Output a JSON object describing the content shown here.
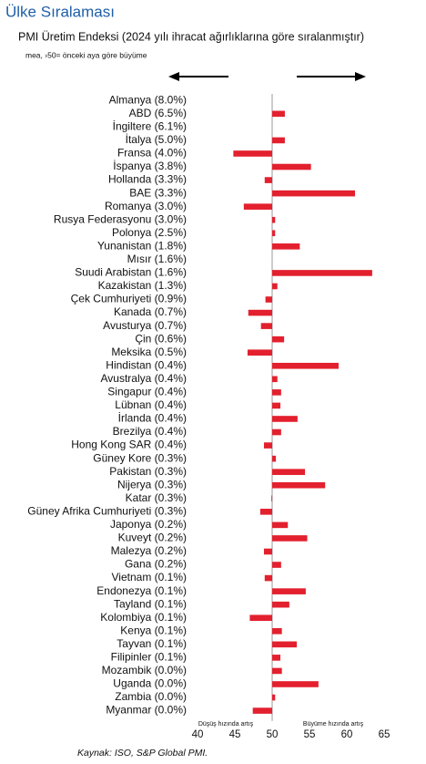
{
  "chart_data": {
    "type": "hbar",
    "title": "Ülke Sıralaması",
    "subtitle": "PMI Üretim Endeksi (2024 yılı ihracat ağırlıklarına göre sıralanmıştır)",
    "note": "mea, ›50= önceki aya göre büyüme",
    "left_label": "Düşüş hızında artış",
    "right_label": "Büyüme hızında artış",
    "source": "Kaynak: ISO, S&P Global PMI.",
    "categories": [
      "Almanya (8.0%)",
      "ABD (6.5%)",
      "İngiltere (6.1%)",
      "İtalya (5.0%)",
      "Fransa (4.0%)",
      "İspanya (3.8%)",
      "Hollanda (3.3%)",
      "BAE (3.3%)",
      "Romanya (3.0%)",
      "Rusya Federasyonu (3.0%)",
      "Polonya (2.5%)",
      "Yunanistan (1.8%)",
      "Mısır (1.6%)",
      "Suudi Arabistan (1.6%)",
      "Kazakistan (1.3%)",
      "Çek Cumhuriyeti (0.9%)",
      "Kanada (0.7%)",
      "Avusturya (0.7%)",
      "Çin (0.6%)",
      "Meksika (0.5%)",
      "Hindistan (0.4%)",
      "Avustralya (0.4%)",
      "Singapur (0.4%)",
      "Lübnan (0.4%)",
      "İrlanda (0.4%)",
      "Brezilya (0.4%)",
      "Hong Kong SAR (0.4%)",
      "Güney Kore (0.3%)",
      "Pakistan (0.3%)",
      "Nijerya (0.3%)",
      "Katar (0.3%)",
      "Güney Afrika Cumhuriyeti (0.3%)",
      "Japonya (0.2%)",
      "Kuveyt (0.2%)",
      "Malezya (0.2%)",
      "Gana (0.2%)",
      "Vietnam (0.1%)",
      "Endonezya (0.1%)",
      "Tayland (0.1%)",
      "Kolombiya (0.1%)",
      "Kenya (0.1%)",
      "Tayvan (0.1%)",
      "Filipinler (0.1%)",
      "Mozambik (0.0%)",
      "Uganda (0.0%)",
      "Zambia (0.0%)",
      "Myanmar (0.0%)"
    ],
    "values": [
      50.0,
      51.7,
      50.0,
      51.7,
      44.8,
      55.2,
      49.0,
      61.1,
      46.2,
      50.4,
      50.4,
      53.7,
      50.0,
      63.4,
      50.7,
      49.1,
      46.8,
      48.5,
      51.6,
      46.7,
      58.9,
      50.7,
      51.2,
      51.1,
      53.4,
      51.2,
      48.9,
      50.5,
      54.4,
      57.1,
      49.9,
      48.4,
      52.1,
      54.7,
      48.9,
      51.2,
      49.0,
      54.5,
      52.3,
      47.0,
      51.3,
      53.3,
      51.1,
      51.3,
      56.2,
      50.4,
      47.4
    ],
    "color": "#e3202e",
    "baseline": 50,
    "xlim": [
      40,
      65
    ],
    "xticks": [
      40,
      45,
      50,
      55,
      60,
      65
    ]
  }
}
